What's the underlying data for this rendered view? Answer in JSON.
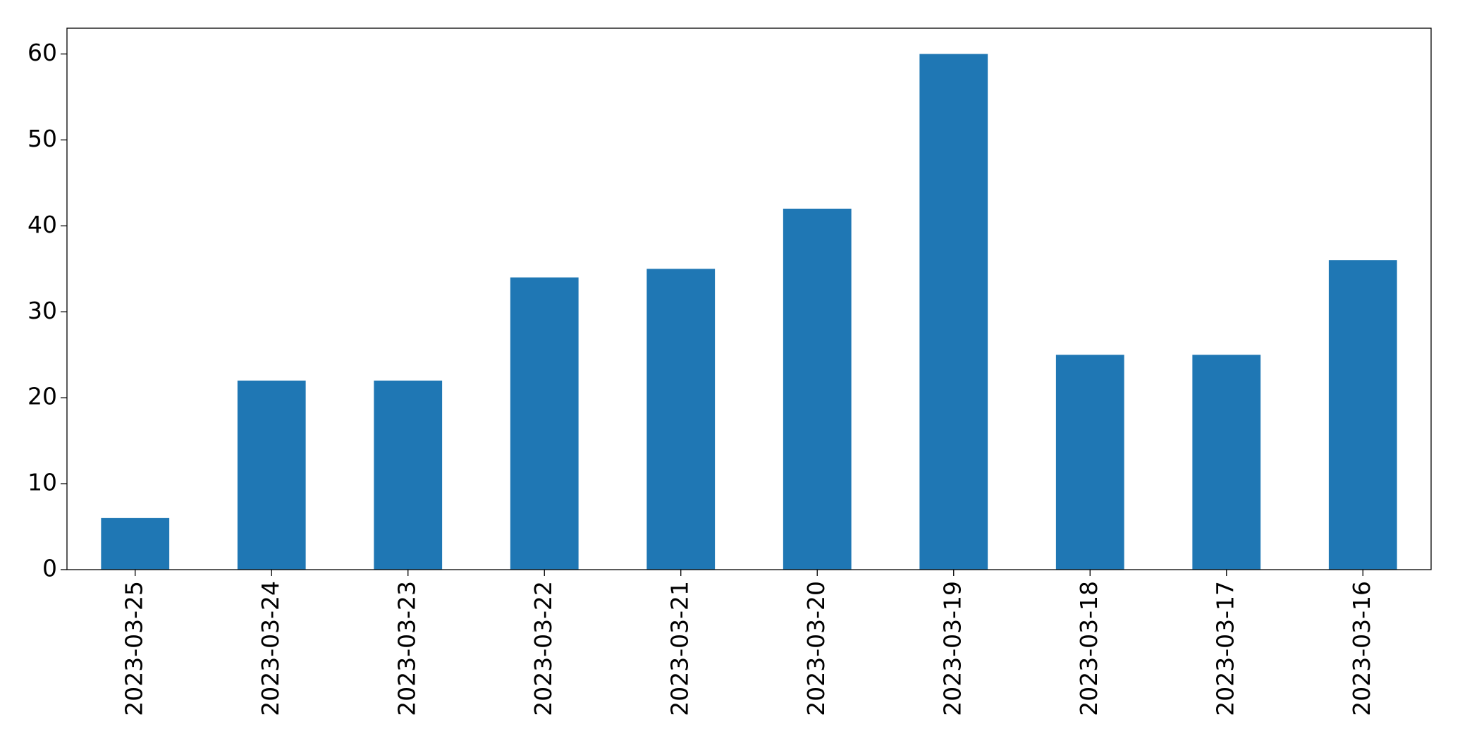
{
  "chart_data": {
    "type": "bar",
    "categories": [
      "2023-03-25",
      "2023-03-24",
      "2023-03-23",
      "2023-03-22",
      "2023-03-21",
      "2023-03-20",
      "2023-03-19",
      "2023-03-18",
      "2023-03-17",
      "2023-03-16"
    ],
    "values": [
      6,
      22,
      22,
      34,
      35,
      42,
      60,
      25,
      25,
      36
    ],
    "color": "#1f77b4",
    "ylim": [
      0,
      63
    ],
    "yticks": [
      0,
      10,
      20,
      30,
      40,
      50,
      60
    ],
    "grid": false
  }
}
